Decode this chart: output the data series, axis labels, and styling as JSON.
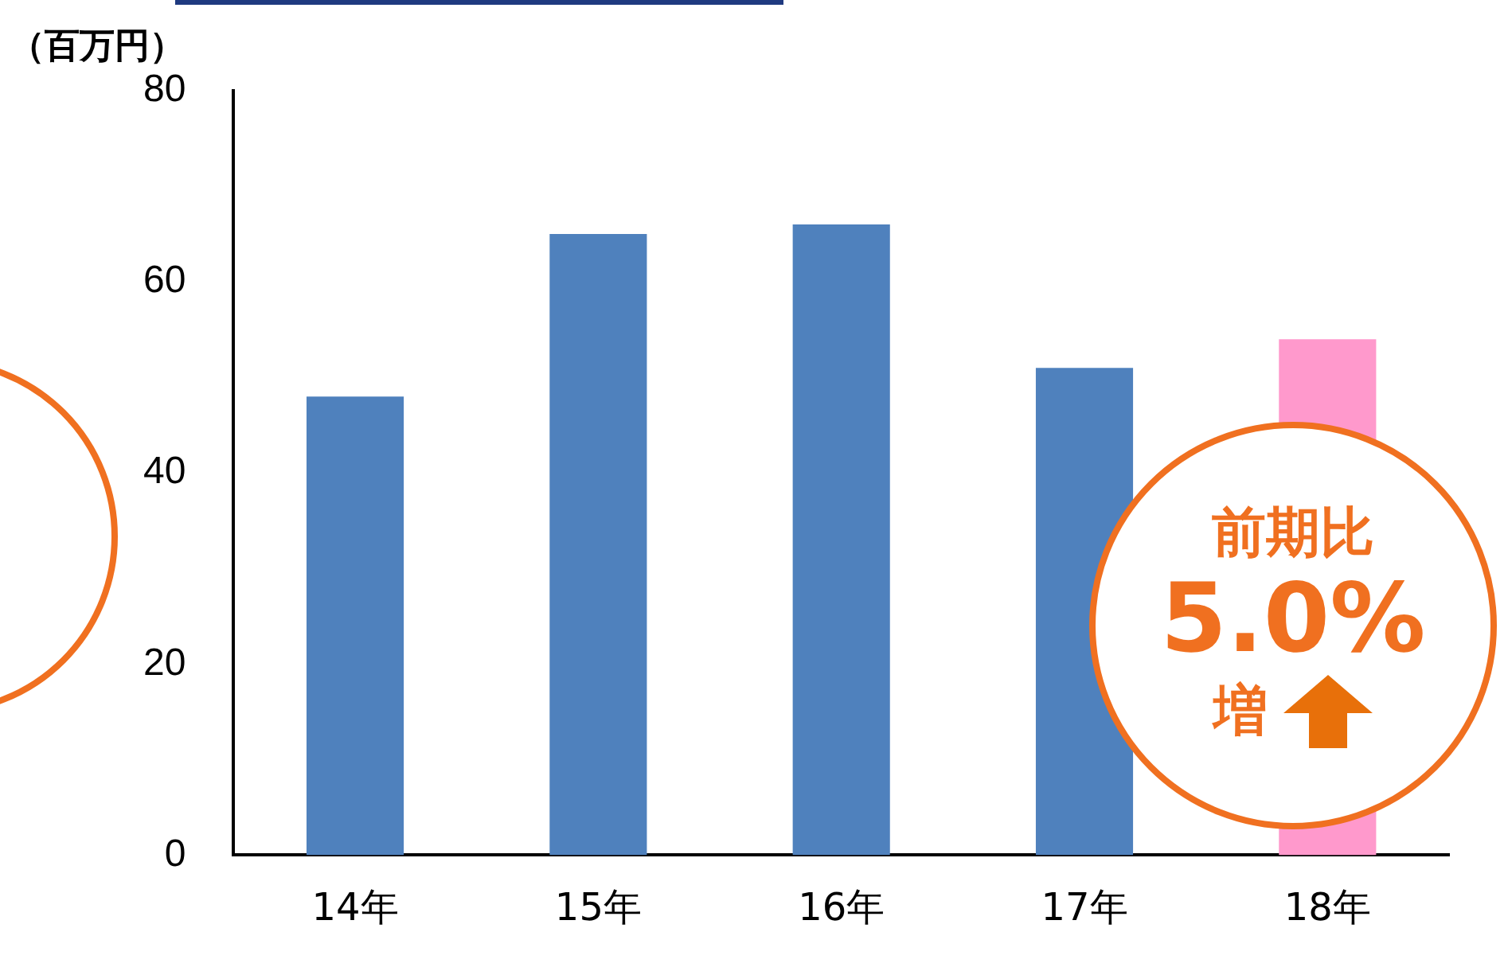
{
  "chart_data": {
    "type": "bar",
    "ylabel": "（百万円）",
    "categories": [
      "14年",
      "15年",
      "16年",
      "17年",
      "18年"
    ],
    "values": [
      48,
      65,
      66,
      51,
      54
    ],
    "colors": [
      "#4f81bd",
      "#4f81bd",
      "#4f81bd",
      "#4f81bd",
      "#ff99cc"
    ],
    "ylim": [
      0,
      80
    ],
    "yticks": [
      0,
      20,
      40,
      60,
      80
    ],
    "grid": false,
    "legend": false,
    "annotations": [
      "前期比",
      "5.0%",
      "増"
    ]
  }
}
